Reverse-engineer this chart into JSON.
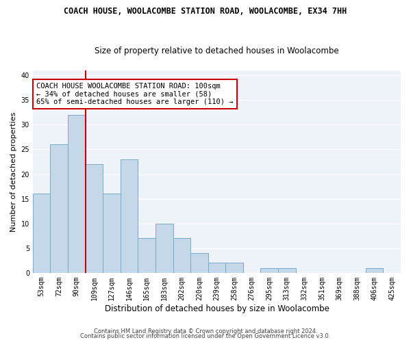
{
  "title": "COACH HOUSE, WOOLACOMBE STATION ROAD, WOOLACOMBE, EX34 7HH",
  "subtitle": "Size of property relative to detached houses in Woolacombe",
  "xlabel": "Distribution of detached houses by size in Woolacombe",
  "ylabel": "Number of detached properties",
  "categories": [
    "53sqm",
    "72sqm",
    "90sqm",
    "109sqm",
    "127sqm",
    "146sqm",
    "165sqm",
    "183sqm",
    "202sqm",
    "220sqm",
    "239sqm",
    "258sqm",
    "276sqm",
    "295sqm",
    "313sqm",
    "332sqm",
    "351sqm",
    "369sqm",
    "388sqm",
    "406sqm",
    "425sqm"
  ],
  "values": [
    16,
    26,
    32,
    22,
    16,
    23,
    7,
    10,
    7,
    4,
    2,
    2,
    0,
    1,
    1,
    0,
    0,
    0,
    0,
    1,
    0
  ],
  "bar_color": "#c5d8ea",
  "bar_edge_color": "#7aaac8",
  "vline_x": 2.5,
  "vline_color": "#cc0000",
  "annotation_text": "COACH HOUSE WOOLACOMBE STATION ROAD: 100sqm\n← 34% of detached houses are smaller (58)\n65% of semi-detached houses are larger (110) →",
  "annotation_box_color": "#ffffff",
  "annotation_box_edge": "#cc0000",
  "ylim": [
    0,
    41
  ],
  "yticks": [
    0,
    5,
    10,
    15,
    20,
    25,
    30,
    35,
    40
  ],
  "footer1": "Contains HM Land Registry data © Crown copyright and database right 2024.",
  "footer2": "Contains public sector information licensed under the Open Government Licence v3.0.",
  "bg_color": "#ffffff",
  "plot_bg_color": "#eef3f8",
  "grid_color": "#ffffff",
  "title_fontsize": 8.5,
  "subtitle_fontsize": 8.5,
  "xlabel_fontsize": 8.5,
  "ylabel_fontsize": 8,
  "tick_fontsize": 7,
  "annotation_fontsize": 7.5,
  "footer_fontsize": 6
}
